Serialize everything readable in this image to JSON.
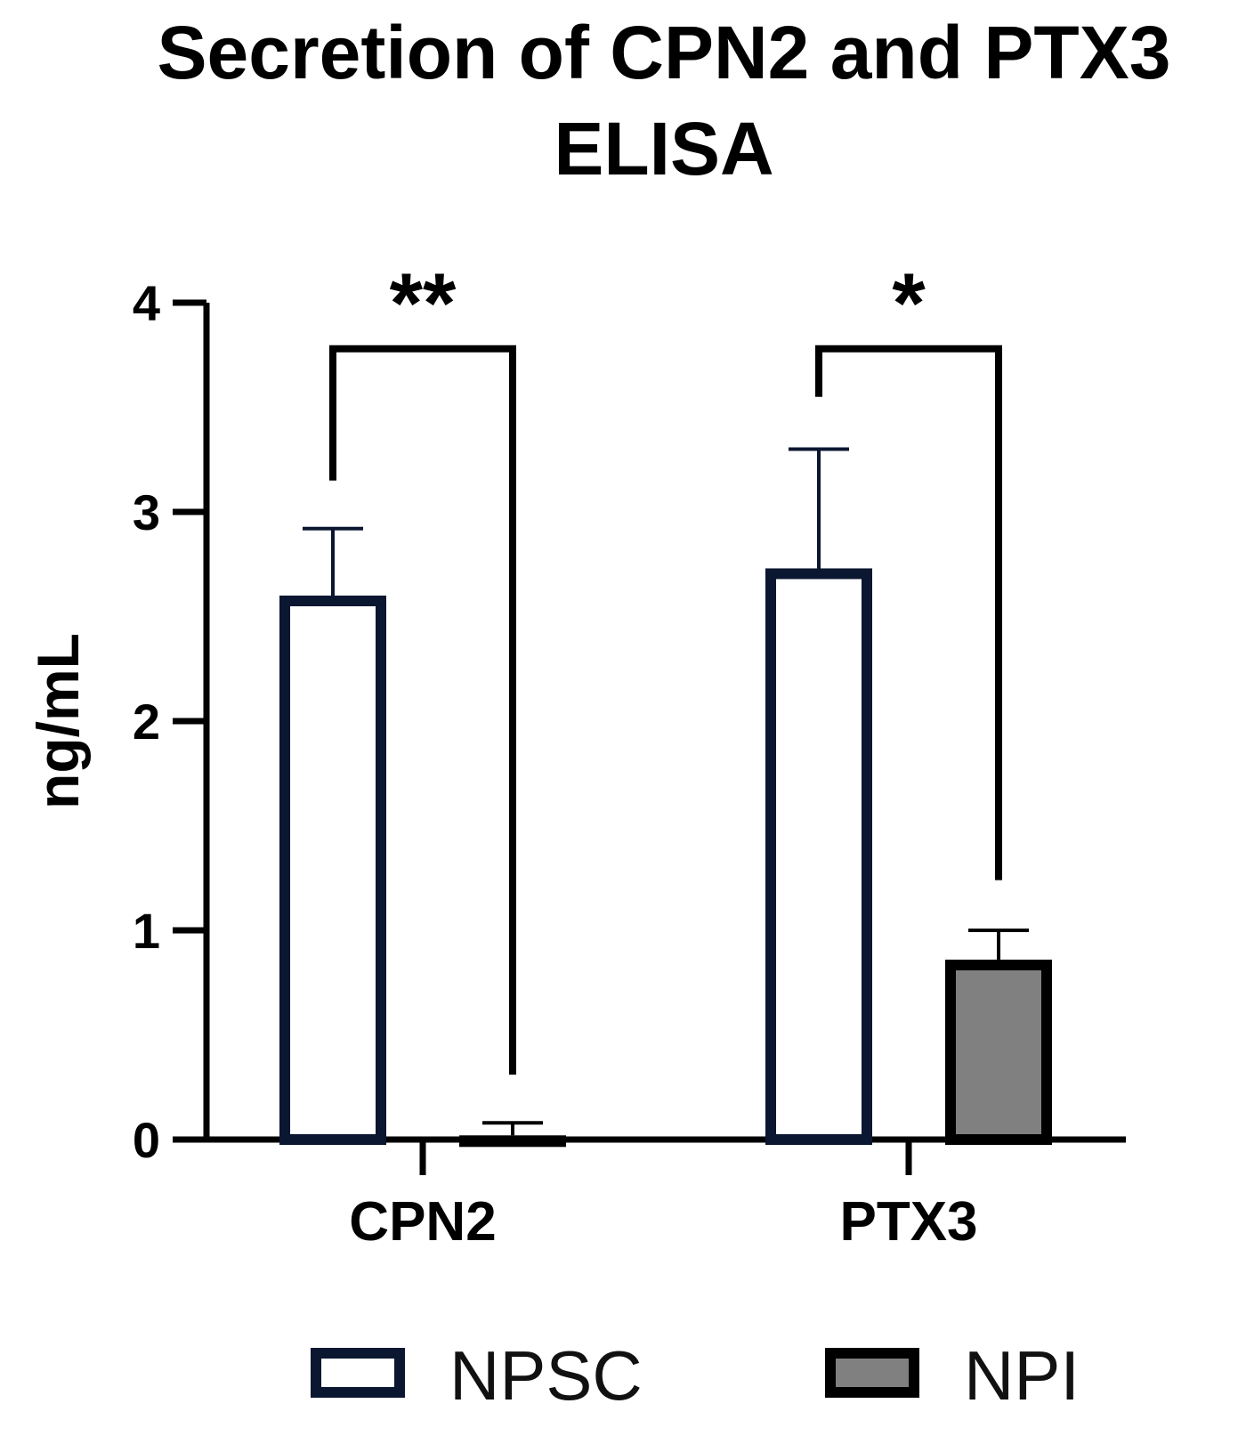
{
  "chart_data": {
    "type": "bar",
    "title": "Secretion of CPN2 and PTX3 ELISA",
    "title_lines": [
      "Secretion of CPN2 and PTX3",
      "ELISA"
    ],
    "ylabel": "ng/mL",
    "xlabel": "",
    "ylim": [
      0,
      4
    ],
    "yticks": [
      0,
      1,
      2,
      3,
      4
    ],
    "categories": [
      "CPN2",
      "PTX3"
    ],
    "series": [
      {
        "name": "NPSC",
        "values": [
          2.6,
          2.73
        ],
        "error": [
          0.32,
          0.57
        ],
        "fill": "#ffffff",
        "stroke": "#0b1730"
      },
      {
        "name": "NPI",
        "values": [
          0.02,
          0.86
        ],
        "error": [
          0.06,
          0.14
        ],
        "fill": "#808080",
        "stroke": "#000000"
      }
    ],
    "significance": [
      {
        "category": "CPN2",
        "label": "**",
        "bracket_y": 3.78,
        "left_end": 3.15,
        "right_end": 0.31
      },
      {
        "category": "PTX3",
        "label": "*",
        "bracket_y": 3.78,
        "left_end": 3.55,
        "right_end": 1.24
      }
    ],
    "legend_position": "bottom",
    "grid": false
  }
}
